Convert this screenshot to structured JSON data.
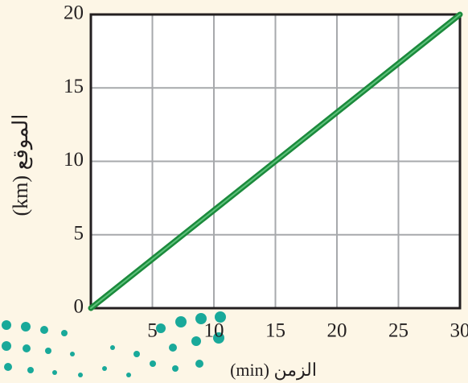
{
  "chart_data": {
    "type": "line",
    "x_label": "الزمن (min)",
    "y_label": "الموقع (km)",
    "x": [
      0,
      30
    ],
    "series": [
      {
        "color": "#1b8a3c",
        "values": [
          0,
          20
        ]
      }
    ],
    "xlim": [
      0,
      30
    ],
    "xticks": [
      5,
      10,
      15,
      20,
      25,
      30
    ],
    "ylim": [
      0,
      20
    ],
    "yticks": [
      0,
      5,
      10,
      15,
      20
    ],
    "grid": true
  }
}
